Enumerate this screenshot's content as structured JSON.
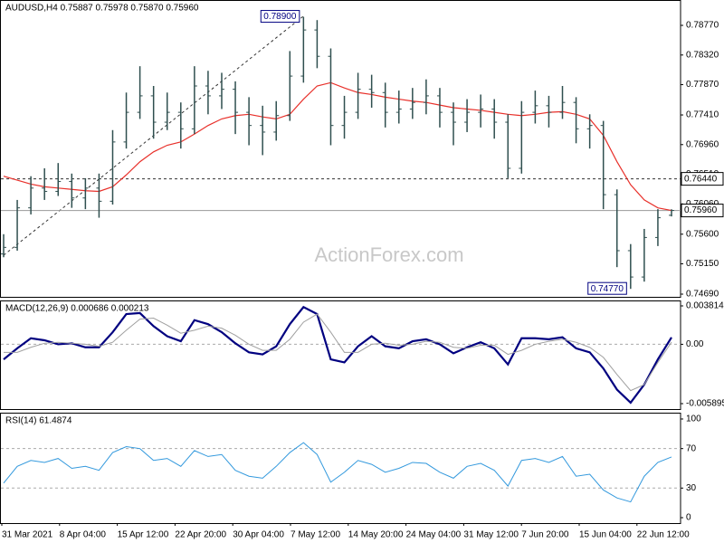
{
  "chart_data": [
    {
      "type": "ohlc",
      "title": "AUDUSD,H4 0.75887 0.75978 0.75870 0.75960",
      "watermark": "ActionForex.com",
      "color": "#2f4f4f",
      "open": [
        0.753,
        0.754,
        0.76,
        0.763,
        0.7625,
        0.764,
        0.7615,
        0.763,
        0.761,
        0.77,
        0.7745,
        0.777,
        0.773,
        0.7745,
        0.772,
        0.7785,
        0.777,
        0.778,
        0.7745,
        0.7725,
        0.7715,
        0.774,
        0.78,
        0.787,
        0.783,
        0.7725,
        0.7745,
        0.778,
        0.7775,
        0.7745,
        0.775,
        0.776,
        0.777,
        0.7745,
        0.773,
        0.7745,
        0.775,
        0.773,
        0.766,
        0.7745,
        0.7755,
        0.7745,
        0.776,
        0.772,
        0.7725,
        0.762,
        0.7535,
        0.7495,
        0.7555,
        0.75887
      ],
      "high": [
        0.756,
        0.7612,
        0.7648,
        0.766,
        0.7668,
        0.7652,
        0.7645,
        0.7652,
        0.7718,
        0.7775,
        0.7815,
        0.7785,
        0.7775,
        0.776,
        0.7815,
        0.7808,
        0.7805,
        0.7792,
        0.7768,
        0.7755,
        0.7762,
        0.7838,
        0.789,
        0.7885,
        0.7842,
        0.777,
        0.7805,
        0.7802,
        0.779,
        0.7778,
        0.7782,
        0.7795,
        0.7782,
        0.776,
        0.7765,
        0.7772,
        0.7765,
        0.7742,
        0.7762,
        0.7778,
        0.777,
        0.7785,
        0.7768,
        0.7742,
        0.7732,
        0.7628,
        0.7545,
        0.7568,
        0.7598,
        0.75978
      ],
      "low": [
        0.7525,
        0.7535,
        0.759,
        0.7612,
        0.7618,
        0.76,
        0.7598,
        0.7585,
        0.7605,
        0.769,
        0.7735,
        0.7705,
        0.7718,
        0.769,
        0.7712,
        0.7742,
        0.775,
        0.7712,
        0.7695,
        0.768,
        0.7702,
        0.7732,
        0.779,
        0.7812,
        0.7695,
        0.7705,
        0.7735,
        0.7752,
        0.7722,
        0.7728,
        0.7735,
        0.7742,
        0.7722,
        0.7695,
        0.7715,
        0.7722,
        0.7705,
        0.7645,
        0.7652,
        0.7728,
        0.7722,
        0.7735,
        0.7698,
        0.769,
        0.7598,
        0.751,
        0.7477,
        0.7488,
        0.7542,
        0.7587
      ],
      "close": [
        0.754,
        0.76,
        0.763,
        0.7625,
        0.764,
        0.7615,
        0.763,
        0.761,
        0.77,
        0.7745,
        0.777,
        0.773,
        0.7745,
        0.772,
        0.7785,
        0.777,
        0.778,
        0.7745,
        0.7725,
        0.7715,
        0.774,
        0.78,
        0.787,
        0.783,
        0.7725,
        0.7745,
        0.778,
        0.7775,
        0.7745,
        0.775,
        0.776,
        0.777,
        0.7745,
        0.773,
        0.7745,
        0.775,
        0.773,
        0.766,
        0.7745,
        0.7755,
        0.7745,
        0.776,
        0.772,
        0.7725,
        0.762,
        0.7535,
        0.7495,
        0.7555,
        0.7585,
        0.7596
      ],
      "ma": {
        "color": "#e8302a",
        "values": [
          0.7648,
          0.7642,
          0.7636,
          0.7632,
          0.763,
          0.7628,
          0.7626,
          0.7625,
          0.7632,
          0.765,
          0.767,
          0.7685,
          0.7695,
          0.77,
          0.7712,
          0.7725,
          0.7735,
          0.774,
          0.7742,
          0.7738,
          0.7735,
          0.7742,
          0.7765,
          0.7785,
          0.779,
          0.7782,
          0.7775,
          0.7772,
          0.7768,
          0.7765,
          0.7762,
          0.776,
          0.7756,
          0.7752,
          0.775,
          0.7748,
          0.7745,
          0.7742,
          0.774,
          0.7742,
          0.7745,
          0.7746,
          0.7742,
          0.7735,
          0.771,
          0.767,
          0.7635,
          0.7612,
          0.76,
          0.7596
        ]
      },
      "ylim": [
        0.74649,
        0.79155
      ],
      "yticks": [
        {
          "value": 0.7877,
          "label": "0.78770"
        },
        {
          "value": 0.7832,
          "label": "0.78320"
        },
        {
          "value": 0.7787,
          "label": "0.77870"
        },
        {
          "value": 0.7741,
          "label": "0.77410"
        },
        {
          "value": 0.7696,
          "label": "0.76960"
        },
        {
          "value": 0.7651,
          "label": "0.76510"
        },
        {
          "value": 0.7606,
          "label": "0.76060"
        },
        {
          "value": 0.756,
          "label": "0.75600"
        },
        {
          "value": 0.7515,
          "label": "0.75150"
        },
        {
          "value": 0.7469,
          "label": "0.74690"
        }
      ],
      "levels": [
        {
          "value": 0.7644,
          "label": "0.76440",
          "style": "dashed"
        },
        {
          "value": 0.7596,
          "label": "0.75960",
          "style": "solid"
        }
      ],
      "annotations": [
        {
          "index": 22,
          "value": 0.789,
          "label": "0.78900"
        },
        {
          "index": 46,
          "value": 0.7477,
          "label": "0.74770"
        }
      ]
    },
    {
      "type": "line",
      "title": "MACD(12,26,9) 0.000686 0.000213",
      "series": [
        {
          "color": "#000080",
          "values": [
            -0.0015,
            -0.0004,
            0.0006,
            0.0004,
            0.0,
            0.0001,
            -0.0003,
            -0.0003,
            0.0012,
            0.003,
            0.0031,
            0.0018,
            0.0008,
            0.0003,
            0.0024,
            0.002,
            0.0012,
            0.0001,
            -0.0008,
            -0.001,
            -0.0002,
            0.002,
            0.0037,
            0.003,
            -0.0015,
            -0.0018,
            -0.0002,
            0.0008,
            -0.0002,
            -0.0004,
            0.0003,
            0.0005,
            0.0,
            -0.0009,
            -0.0003,
            0.0002,
            -0.0004,
            -0.002,
            0.0006,
            0.0006,
            0.0005,
            0.0007,
            -0.0004,
            -0.0008,
            -0.0024,
            -0.0045,
            -0.0058,
            -0.004,
            -0.0015,
            0.000686
          ]
        },
        {
          "color": "#a0a0a0",
          "values": [
            -0.0008,
            -0.0008,
            -0.0003,
            0.0001,
            0.0002,
            0.0001,
            0.0,
            -0.0002,
            0.0002,
            0.0014,
            0.0025,
            0.0026,
            0.0019,
            0.0011,
            0.0014,
            0.0018,
            0.0016,
            0.0009,
            0.0,
            -0.0006,
            -0.0006,
            0.0005,
            0.0022,
            0.003,
            0.0012,
            -0.0008,
            -0.0008,
            0.0,
            0.0001,
            -0.0001,
            0.0,
            0.0003,
            0.0002,
            -0.0003,
            -0.0004,
            -0.0001,
            -0.0001,
            -0.001,
            -0.0006,
            0.0,
            0.0003,
            0.0005,
            0.0002,
            -0.0003,
            -0.0013,
            -0.003,
            -0.0046,
            -0.004,
            -0.0018,
            0.000213
          ]
        }
      ],
      "ylim": [
        -0.006434,
        0.004353
      ],
      "yticks": [
        0.003814,
        {
          "value": 0,
          "label": "0.00"
        },
        -0.005895
      ],
      "levels": [
        0
      ]
    },
    {
      "type": "line",
      "title": "RSI(14) 61.4874",
      "series": [
        {
          "color": "#3399dd",
          "values": [
            35,
            52,
            58,
            56,
            60,
            50,
            52,
            48,
            66,
            72,
            70,
            58,
            60,
            52,
            68,
            62,
            64,
            48,
            42,
            40,
            52,
            66,
            76,
            64,
            36,
            46,
            58,
            54,
            46,
            50,
            56,
            55,
            46,
            40,
            52,
            55,
            48,
            32,
            58,
            60,
            56,
            62,
            42,
            44,
            28,
            20,
            16,
            42,
            56,
            61.4874
          ]
        }
      ],
      "ylim": [
        -5.5,
        106.4
      ],
      "yticks": [
        100,
        70,
        30,
        0
      ],
      "levels": [
        70,
        30
      ],
      "x_labels": [
        "31 Mar 2021",
        "8 Apr 04:00",
        "15 Apr 12:00",
        "22 Apr 20:00",
        "30 Apr 04:00",
        "7 May 12:00",
        "14 May 20:00",
        "24 May 04:00",
        "31 May 12:00",
        "7 Jun 20:00",
        "15 Jun 04:00",
        "22 Jun 12:00"
      ]
    }
  ]
}
